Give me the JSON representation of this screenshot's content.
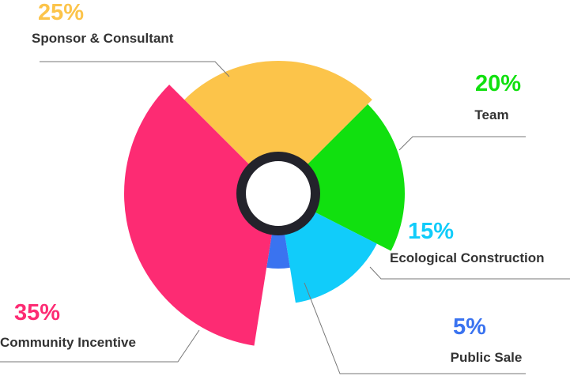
{
  "chart_data": {
    "type": "pie",
    "categories": [
      "Sponsor & Consultant",
      "Team",
      "Ecological Construction",
      "Public Sale",
      "Community Incentive"
    ],
    "values": [
      25,
      20,
      15,
      5,
      35
    ],
    "value_labels": [
      "25%",
      "20%",
      "15%",
      "5%",
      "35%"
    ],
    "colors": [
      "#fcc44a",
      "#11e00f",
      "#11ccfa",
      "#3a73f0",
      "#fd2b73"
    ]
  }
}
